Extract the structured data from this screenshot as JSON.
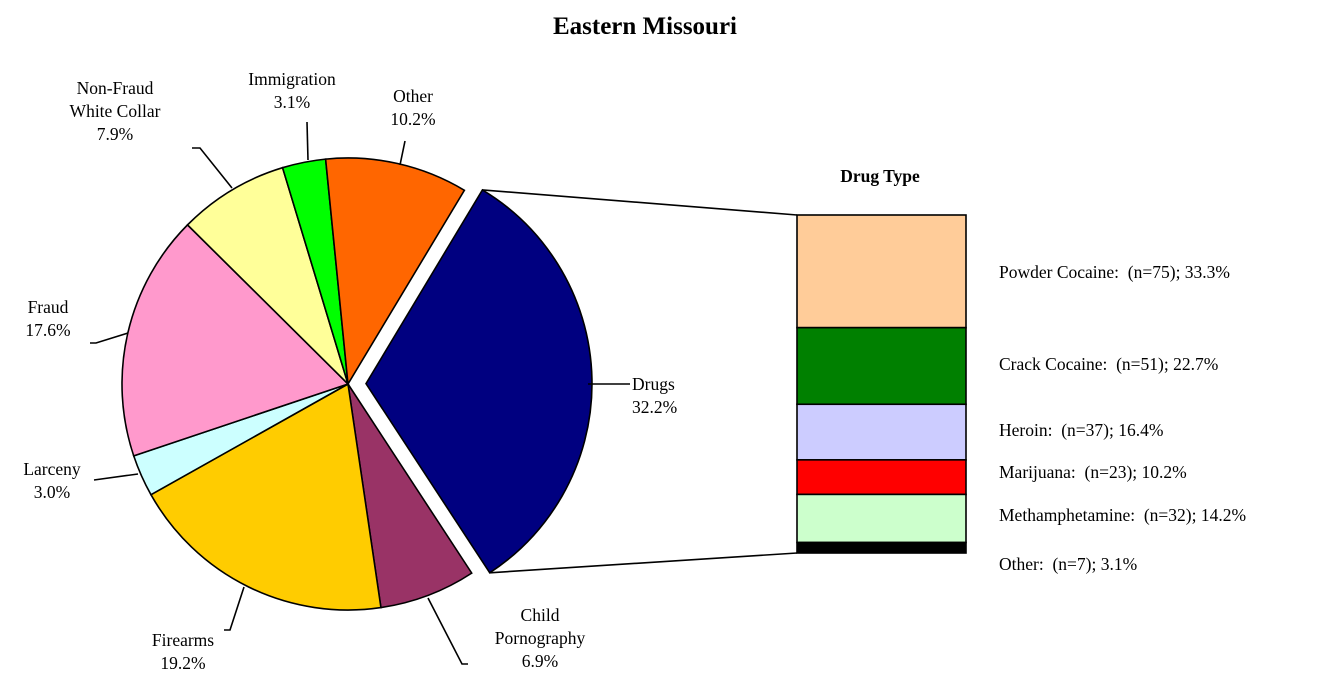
{
  "chart_data": {
    "type": "pie",
    "title": "Eastern Missouri",
    "slices": [
      {
        "label": "Drugs",
        "value": 32.2,
        "display": "32.2%",
        "color": "#000080",
        "exploded": true
      },
      {
        "label": "Child Pornography",
        "label_lines": [
          "Child",
          "Pornography"
        ],
        "value": 6.9,
        "display": "6.9%",
        "color": "#993366"
      },
      {
        "label": "Firearms",
        "value": 19.2,
        "display": "19.2%",
        "color": "#FFCC00"
      },
      {
        "label": "Larceny",
        "value": 3.0,
        "display": "3.0%",
        "color": "#CCFFFF"
      },
      {
        "label": "Fraud",
        "value": 17.6,
        "display": "17.6%",
        "color": "#FF99CC"
      },
      {
        "label": "Non-Fraud White Collar",
        "label_lines": [
          "Non-Fraud",
          "White Collar"
        ],
        "value": 7.9,
        "display": "7.9%",
        "color": "#FFFF99"
      },
      {
        "label": "Immigration",
        "value": 3.1,
        "display": "3.1%",
        "color": "#00FF00"
      },
      {
        "label": "Other",
        "value": 10.2,
        "display": "10.2%",
        "color": "#FF6600"
      }
    ],
    "breakdown": {
      "title": "Drug Type",
      "parent": "Drugs",
      "segments": [
        {
          "label": "Powder Cocaine:  (n=75); 33.3%",
          "name": "Powder Cocaine",
          "n": 75,
          "percent": 33.3,
          "color": "#FFCC99"
        },
        {
          "label": "Crack Cocaine:  (n=51); 22.7%",
          "name": "Crack Cocaine",
          "n": 51,
          "percent": 22.7,
          "color": "#008000"
        },
        {
          "label": "Heroin:  (n=37); 16.4%",
          "name": "Heroin",
          "n": 37,
          "percent": 16.4,
          "color": "#CCCCFF"
        },
        {
          "label": "Marijuana:  (n=23); 10.2%",
          "name": "Marijuana",
          "n": 23,
          "percent": 10.2,
          "color": "#FF0000"
        },
        {
          "label": "Methamphetamine:  (n=32); 14.2%",
          "name": "Methamphetamine",
          "n": 32,
          "percent": 14.2,
          "color": "#CCFFCC"
        },
        {
          "label": "Other:  (n=7); 3.1%",
          "name": "Other",
          "n": 7,
          "percent": 3.1,
          "color": "#000000"
        }
      ]
    }
  }
}
